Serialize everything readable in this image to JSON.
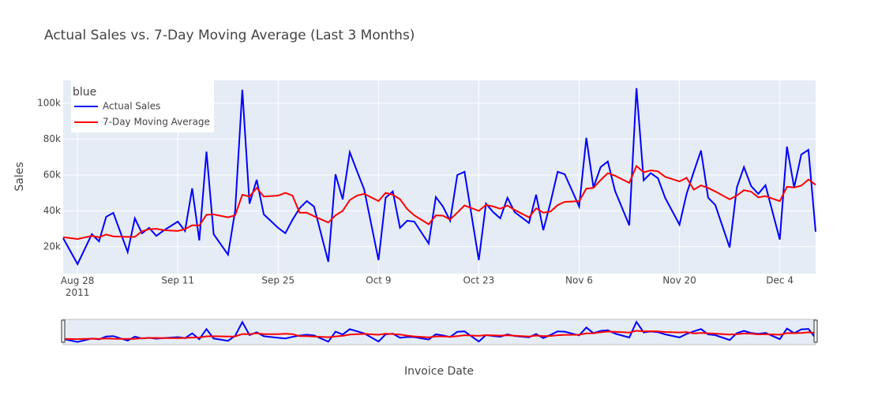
{
  "chart_data": {
    "type": "line",
    "title": "Actual Sales vs. 7-Day Moving Average (Last 3 Months)",
    "x_label": "Invoice Date",
    "y_label": "Sales",
    "legend_title": "blue",
    "legend_position": "top-left",
    "grid": true,
    "range_slider": true,
    "x": [
      "2011-08-26",
      "2011-08-28",
      "2011-08-30",
      "2011-08-31",
      "2011-09-01",
      "2011-09-02",
      "2011-09-04",
      "2011-09-05",
      "2011-09-06",
      "2011-09-07",
      "2011-09-08",
      "2011-09-09",
      "2011-09-11",
      "2011-09-12",
      "2011-09-13",
      "2011-09-14",
      "2011-09-15",
      "2011-09-16",
      "2011-09-18",
      "2011-09-19",
      "2011-09-20",
      "2011-09-21",
      "2011-09-22",
      "2011-09-23",
      "2011-09-25",
      "2011-09-26",
      "2011-09-27",
      "2011-09-28",
      "2011-09-29",
      "2011-09-30",
      "2011-10-02",
      "2011-10-03",
      "2011-10-04",
      "2011-10-05",
      "2011-10-06",
      "2011-10-07",
      "2011-10-09",
      "2011-10-10",
      "2011-10-11",
      "2011-10-12",
      "2011-10-13",
      "2011-10-14",
      "2011-10-16",
      "2011-10-17",
      "2011-10-18",
      "2011-10-19",
      "2011-10-20",
      "2011-10-21",
      "2011-10-23",
      "2011-10-24",
      "2011-10-25",
      "2011-10-26",
      "2011-10-27",
      "2011-10-28",
      "2011-10-30",
      "2011-10-31",
      "2011-11-01",
      "2011-11-02",
      "2011-11-03",
      "2011-11-04",
      "2011-11-06",
      "2011-11-07",
      "2011-11-08",
      "2011-11-09",
      "2011-11-10",
      "2011-11-11",
      "2011-11-13",
      "2011-11-14",
      "2011-11-15",
      "2011-11-16",
      "2011-11-17",
      "2011-11-18",
      "2011-11-20",
      "2011-11-21",
      "2011-11-22",
      "2011-11-23",
      "2011-11-24",
      "2011-11-25",
      "2011-11-27",
      "2011-11-28",
      "2011-11-29",
      "2011-11-30",
      "2011-12-01",
      "2011-12-02",
      "2011-12-04",
      "2011-12-05",
      "2011-12-06",
      "2011-12-07",
      "2011-12-08",
      "2011-12-09"
    ],
    "series": [
      {
        "name": "Actual Sales",
        "color": "#0000ff",
        "values": [
          24800,
          10300,
          27000,
          23000,
          36700,
          38900,
          17000,
          35800,
          27500,
          30500,
          26000,
          29000,
          34000,
          28800,
          52500,
          23500,
          73000,
          27000,
          15600,
          40000,
          107500,
          44000,
          57300,
          38000,
          30500,
          27500,
          35000,
          41500,
          45500,
          42400,
          11600,
          60400,
          46400,
          72700,
          62200,
          52000,
          12500,
          47300,
          50800,
          30500,
          34500,
          34000,
          21800,
          47700,
          42400,
          34500,
          60000,
          61800,
          12500,
          44000,
          39300,
          35800,
          47300,
          39300,
          33200,
          49000,
          29200,
          44600,
          61800,
          60400,
          42400,
          80700,
          53000,
          64400,
          67500,
          51200,
          31900,
          108400,
          57000,
          61000,
          58200,
          47300,
          32300,
          49500,
          61800,
          73600,
          47300,
          43300,
          19600,
          53000,
          64400,
          53800,
          49500,
          54300,
          24000,
          75800,
          53000,
          71400,
          74000,
          28400
        ]
      },
      {
        "name": "7-Day Moving Average",
        "color": "#ff0000",
        "values": [
          25300,
          24300,
          26000,
          25300,
          26800,
          25800,
          25500,
          25500,
          28600,
          29800,
          30000,
          29200,
          28800,
          29800,
          32000,
          31800,
          37800,
          38000,
          36400,
          37500,
          49000,
          48000,
          52800,
          48000,
          48500,
          50000,
          48500,
          39000,
          39000,
          37000,
          33500,
          37500,
          40000,
          46000,
          48500,
          49500,
          45500,
          50000,
          49000,
          46500,
          41000,
          37500,
          32500,
          37500,
          37300,
          35200,
          39000,
          43000,
          40000,
          43300,
          42400,
          41200,
          43000,
          40500,
          36400,
          41400,
          39000,
          39600,
          43200,
          45000,
          45400,
          52400,
          52800,
          57200,
          61000,
          59600,
          55600,
          65000,
          61500,
          62600,
          62000,
          59000,
          56400,
          58400,
          51800,
          54200,
          52800,
          50800,
          46400,
          48500,
          51500,
          50700,
          47500,
          48200,
          45400,
          53400,
          53000,
          54000,
          57500,
          54500
        ]
      }
    ],
    "xlim": [
      "2011-08-26",
      "2011-12-09"
    ],
    "xticks": [
      {
        "value": "2011-08-28",
        "label": "Aug 28\n2011"
      },
      {
        "value": "2011-09-11",
        "label": "Sep 11"
      },
      {
        "value": "2011-09-25",
        "label": "Sep 25"
      },
      {
        "value": "2011-10-09",
        "label": "Oct 9"
      },
      {
        "value": "2011-10-23",
        "label": "Oct 23"
      },
      {
        "value": "2011-11-06",
        "label": "Nov 6"
      },
      {
        "value": "2011-11-20",
        "label": "Nov 20"
      },
      {
        "value": "2011-12-04",
        "label": "Dec 4"
      }
    ],
    "ylim": [
      5000,
      112700
    ],
    "yticks": [
      {
        "value": 20000,
        "label": "20k"
      },
      {
        "value": 40000,
        "label": "40k"
      },
      {
        "value": 60000,
        "label": "60k"
      },
      {
        "value": 80000,
        "label": "80k"
      },
      {
        "value": 100000,
        "label": "100k"
      }
    ]
  }
}
